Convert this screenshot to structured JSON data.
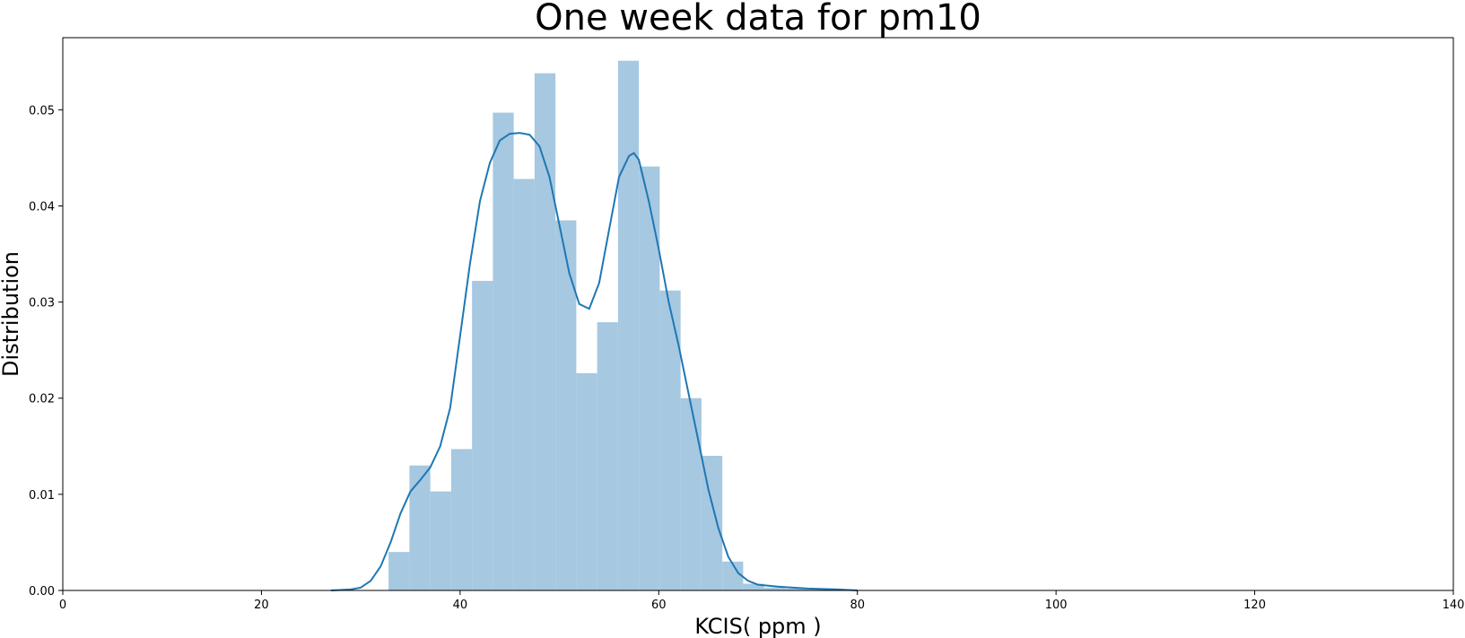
{
  "chart_data": {
    "type": "bar",
    "subtype": "histogram-with-kde",
    "title": "One week data for pm10",
    "xlabel": "KCIS( ppm )",
    "ylabel": "Distribution",
    "xlim": [
      0,
      140
    ],
    "ylim": [
      0,
      0.0575
    ],
    "xticks": [
      0,
      20,
      40,
      60,
      80,
      100,
      120,
      140
    ],
    "xtick_labels": [
      "0",
      "20",
      "40",
      "60",
      "80",
      "100",
      "120",
      "140"
    ],
    "yticks": [
      0.0,
      0.01,
      0.02,
      0.03,
      0.04,
      0.05
    ],
    "ytick_labels": [
      "0.00",
      "0.01",
      "0.02",
      "0.03",
      "0.04",
      "0.05"
    ],
    "grid": false,
    "bar_color": "#a6c8e1",
    "line_color": "#1f77b4",
    "bins": {
      "edges": [
        32.8,
        34.9,
        37.0,
        39.1,
        41.2,
        43.3,
        45.4,
        47.5,
        49.6,
        51.7,
        53.8,
        55.9,
        58.0,
        60.1,
        62.2,
        64.3,
        66.4,
        68.5,
        70.6,
        72.7,
        74.8,
        76.9,
        79.0
      ],
      "values": [
        0.004,
        0.013,
        0.0103,
        0.0147,
        0.0322,
        0.0497,
        0.0428,
        0.0538,
        0.0385,
        0.0226,
        0.0279,
        0.0551,
        0.0441,
        0.0312,
        0.02,
        0.014,
        0.003,
        0.0007,
        0.0003,
        0.0002,
        0.0001,
        0.0001
      ]
    },
    "kde": {
      "x": [
        27,
        29,
        30,
        31,
        32,
        33,
        34,
        35,
        36,
        37,
        38,
        39,
        40,
        41,
        42,
        43,
        44,
        45,
        46,
        47,
        48,
        49,
        50,
        51,
        52,
        53,
        54,
        55,
        56,
        57,
        57.5,
        58,
        59,
        60,
        61,
        62,
        63,
        64,
        65,
        66,
        67,
        68,
        69,
        70,
        72,
        75,
        78,
        80
      ],
      "y": [
        0.0,
        0.0001,
        0.0003,
        0.001,
        0.0025,
        0.005,
        0.008,
        0.0103,
        0.0115,
        0.0128,
        0.015,
        0.019,
        0.0265,
        0.034,
        0.0405,
        0.0445,
        0.0468,
        0.0475,
        0.0476,
        0.0474,
        0.0462,
        0.043,
        0.038,
        0.033,
        0.0298,
        0.0293,
        0.032,
        0.0375,
        0.043,
        0.0452,
        0.0455,
        0.0448,
        0.0405,
        0.0355,
        0.03,
        0.0255,
        0.0205,
        0.0155,
        0.0105,
        0.0065,
        0.0035,
        0.0018,
        0.001,
        0.0006,
        0.0004,
        0.0002,
        0.0001,
        0.0
      ]
    }
  }
}
